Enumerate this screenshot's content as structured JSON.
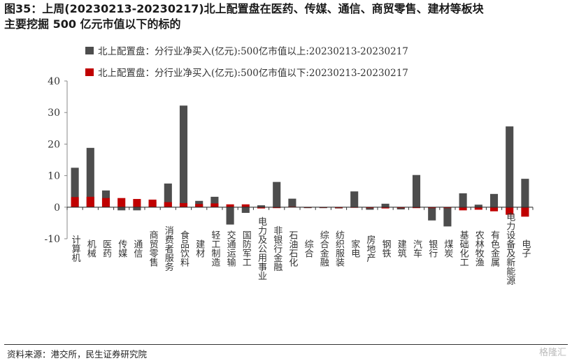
{
  "title": {
    "line1": "图35：上周(20230213-20230217)北上配置盘在医药、传媒、通信、商贸零售、建材等板块",
    "line2": "主要挖掘 500 亿元市值以下的标的"
  },
  "source": "资料来源：港交所，民生证券研究院",
  "watermark": "格隆汇",
  "colors": {
    "above": "#4d4d4d",
    "below": "#c00000"
  },
  "chart_data": {
    "type": "bar",
    "stacked": false,
    "ylim": [
      -10,
      40
    ],
    "yticks": [
      -10,
      0,
      10,
      20,
      30,
      40
    ],
    "legend_position": "top",
    "categories": [
      "计算机",
      "机械",
      "医药",
      "传媒",
      "通信",
      "商贸零售",
      "消费者服务",
      "食品饮料",
      "建材",
      "轻工制造",
      "交通运输",
      "国防军工",
      "电力及公用事业",
      "非银行金融",
      "石油石化",
      "综合",
      "综合金融",
      "纺织服装",
      "家电",
      "房地产",
      "钢铁",
      "建筑",
      "汽车",
      "银行",
      "煤炭",
      "基础化工",
      "农林牧渔",
      "有色金属",
      "电力设备及新能源",
      "电子"
    ],
    "series": [
      {
        "name": "北上配置盘：分行业净买入(亿元):500亿市值以上:20230213-20230217",
        "values": [
          12.5,
          18.8,
          5.3,
          -1.0,
          -1.0,
          1.8,
          7.5,
          32.2,
          2.0,
          3.3,
          -5.5,
          -1.8,
          0.6,
          8.0,
          2.7,
          -0.3,
          -0.3,
          -0.4,
          5.0,
          -0.8,
          1.1,
          -0.7,
          10.2,
          -4.2,
          -6.1,
          4.4,
          0.8,
          4.2,
          25.6,
          9.0
        ]
      },
      {
        "name": "北上配置盘：分行业净买入(亿元):500亿市值以下:20230213-20230217",
        "values": [
          3.2,
          3.3,
          2.9,
          2.9,
          2.6,
          2.4,
          1.6,
          1.3,
          1.0,
          1.2,
          0.9,
          0.9,
          -0.4,
          -0.3,
          0.2,
          -0.2,
          -0.2,
          -0.3,
          -0.2,
          -0.3,
          -0.4,
          -0.3,
          -0.3,
          -0.3,
          -0.3,
          -1.0,
          -0.8,
          -1.3,
          -2.4,
          -3.0
        ]
      }
    ]
  }
}
